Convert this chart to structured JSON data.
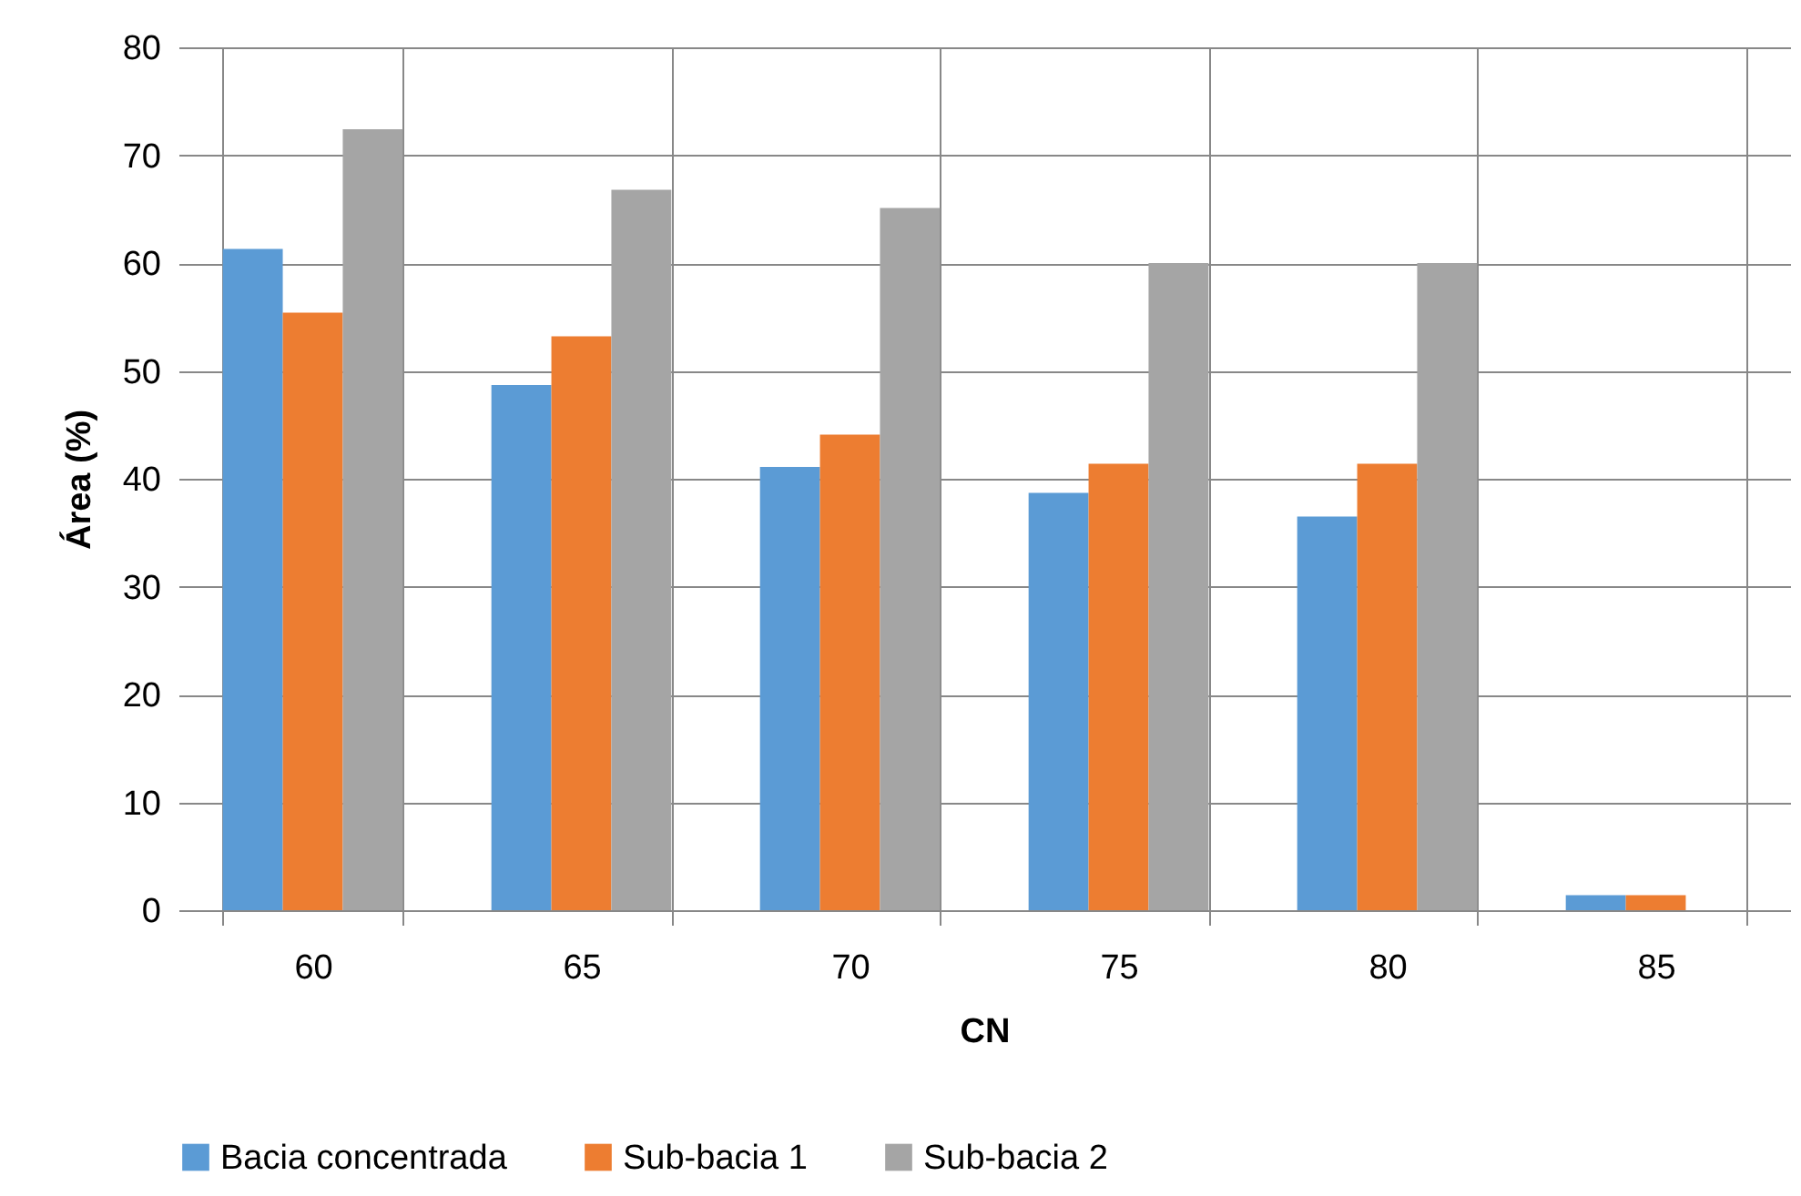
{
  "chart_data": {
    "type": "bar",
    "xlabel": "CN",
    "ylabel": "Área  (%)",
    "categories": [
      "60",
      "65",
      "70",
      "75",
      "80",
      "85"
    ],
    "series": [
      {
        "name": "Bacia concentrada",
        "color": "#5b9bd5",
        "values": [
          61.3,
          48.7,
          41.1,
          38.7,
          36.5,
          1.4
        ]
      },
      {
        "name": "Sub-bacia 1",
        "color": "#ed7d31",
        "values": [
          55.4,
          53.2,
          44.1,
          41.4,
          41.4,
          1.4
        ]
      },
      {
        "name": "Sub-bacia 2",
        "color": "#a5a5a5",
        "values": [
          72.4,
          66.8,
          65.1,
          60.0,
          60.0,
          null
        ]
      }
    ],
    "ylim": [
      0,
      80
    ],
    "yticks": [
      0,
      10,
      20,
      30,
      40,
      50,
      60,
      70,
      80
    ],
    "grid": true,
    "legend": "bottom"
  }
}
